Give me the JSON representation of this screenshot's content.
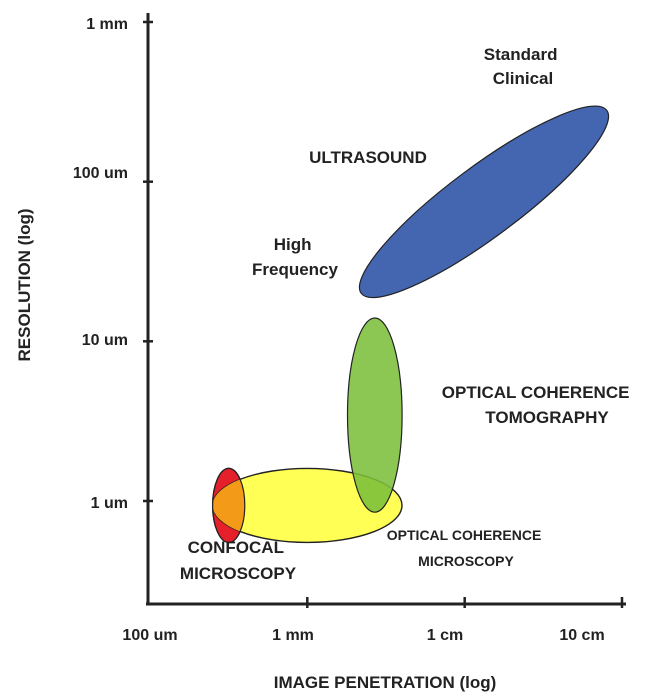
{
  "chart_data": {
    "type": "scatter",
    "title": "",
    "xlabel": "IMAGE PENETRATION (log)",
    "ylabel": "RESOLUTION (log)",
    "x_scale": "log",
    "y_scale": "log",
    "x_unit": "m",
    "y_unit": "m",
    "xlim": [
      0.0001,
      0.12
    ],
    "ylim": [
      3e-07,
      0.001
    ],
    "grid": false,
    "x_ticks": [
      {
        "value": 0.0001,
        "label": "100 um"
      },
      {
        "value": 0.001,
        "label": "1 mm"
      },
      {
        "value": 0.01,
        "label": "1 cm"
      },
      {
        "value": 0.1,
        "label": "10 cm"
      }
    ],
    "y_ticks": [
      {
        "value": 1e-06,
        "label": "1 um"
      },
      {
        "value": 1e-05,
        "label": "10 um"
      },
      {
        "value": 0.0001,
        "label": "100 um"
      },
      {
        "value": 0.001,
        "label": "1 mm"
      }
    ],
    "regions": [
      {
        "name": "Confocal microscopy",
        "color": "#e5202a",
        "penetration_range": [
          0.00025,
          0.0004
        ],
        "resolution_range": [
          5.5e-07,
          1.6e-06
        ]
      },
      {
        "name": "Optical coherence microscopy",
        "color": "#ffff55",
        "penetration_range": [
          0.00025,
          0.004
        ],
        "resolution_range": [
          5.5e-07,
          1.6e-06
        ]
      },
      {
        "name": "Optical coherence tomography",
        "color": "#7bbf3a",
        "penetration_range": [
          0.0018,
          0.004
        ],
        "resolution_range": [
          8.5e-07,
          1.4e-05
        ]
      },
      {
        "name": "Ultrasound",
        "color": "#4466b0",
        "penetration_range": [
          0.0022,
          0.08
        ],
        "resolution_range": [
          2e-05,
          0.00028
        ]
      }
    ],
    "annotations": [
      {
        "lines": [
          "Standard",
          "Clinical"
        ]
      },
      {
        "lines": [
          "ULTRASOUND"
        ]
      },
      {
        "lines": [
          "High",
          "Frequency"
        ]
      },
      {
        "lines": [
          "OPTICAL COHERENCE",
          "TOMOGRAPHY"
        ]
      },
      {
        "lines": [
          "OPTICAL COHERENCE",
          "MICROSCOPY"
        ]
      },
      {
        "lines": [
          "CONFOCAL",
          "MICROSCOPY"
        ]
      }
    ],
    "overlap_color": "#f39a18"
  }
}
